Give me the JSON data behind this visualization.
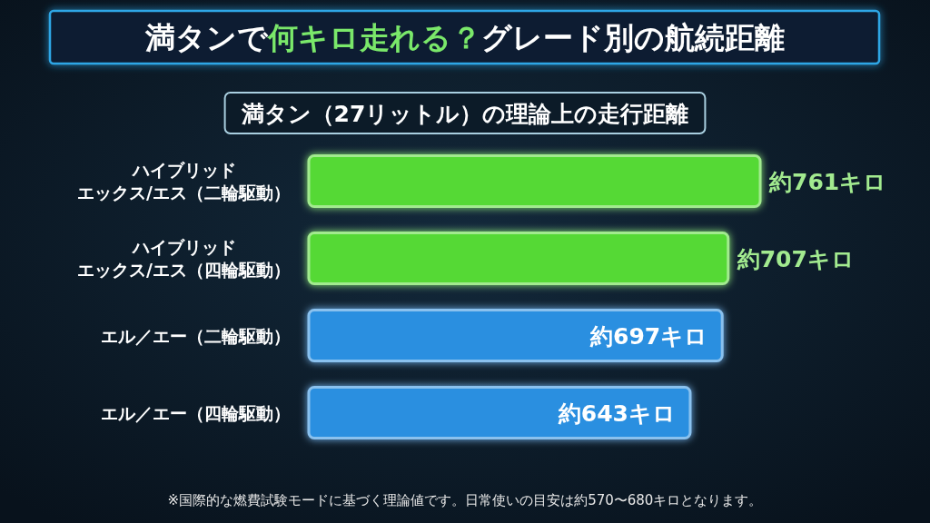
{
  "chart_data": {
    "type": "bar",
    "orientation": "horizontal",
    "title": "満タンで**何キロ走れる？**グレード別の航続距離",
    "subtitle": "満タン（27リットル）の理論上の走行距離",
    "categories": [
      "ハイブリッドエックス/エス（二輪駆動）",
      "ハイブリッドエックス/エス（四輪駆動）",
      "エル／エー（二輪駆動）",
      "エル／エー（四輪駆動）"
    ],
    "values": [
      761,
      707,
      697,
      643
    ],
    "colors": [
      "#55d934",
      "#55d934",
      "#2b8fe0",
      "#2b8fe0"
    ],
    "value_labels": [
      "約761キロ",
      "約707キロ",
      "約697キロ",
      "約643キロ"
    ],
    "annotations": [
      "※国際的な燃費試験モードに基づく理論値です。日常使いの目安は約570〜680キロとなります。"
    ]
  }
}
